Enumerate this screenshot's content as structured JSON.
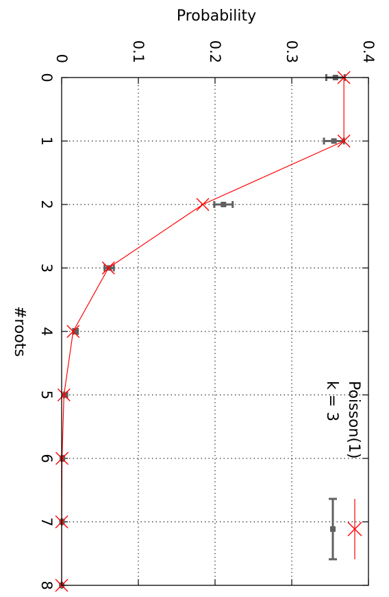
{
  "chart_data": {
    "type": "line",
    "orientation": "rotated-90-clockwise",
    "title": "",
    "xlabel": "#roots",
    "ylabel": "Probability",
    "x_ticks": [
      "0",
      "1",
      "2",
      "3",
      "4",
      "5",
      "6",
      "7",
      "8"
    ],
    "y_ticks": [
      "0",
      "0.1",
      "0.2",
      "0.3",
      "0.4"
    ],
    "xlim": [
      0,
      8
    ],
    "ylim": [
      0,
      0.4
    ],
    "grid": true,
    "legend_position": "bottom-right",
    "series": [
      {
        "name": "Poisson(1)",
        "color": "#ff0000",
        "marker": "x",
        "x": [
          0,
          1,
          2,
          3,
          4,
          5,
          6,
          7,
          8
        ],
        "y": [
          0.368,
          0.368,
          0.184,
          0.061,
          0.015,
          0.003,
          0.0005,
          0.0001,
          1e-05
        ]
      },
      {
        "name": "k = 3",
        "color": "#606060",
        "marker": "square-errorbar",
        "x": [
          0,
          1,
          2,
          3,
          4,
          5,
          6,
          7,
          8
        ],
        "y": [
          0.357,
          0.355,
          0.211,
          0.062,
          0.018,
          0.005,
          0.001,
          0.0005,
          0.0001
        ],
        "y_err": [
          0.012,
          0.013,
          0.012,
          0.006,
          0.003,
          0.002,
          0.001,
          0.0005,
          0.0002
        ]
      }
    ]
  }
}
